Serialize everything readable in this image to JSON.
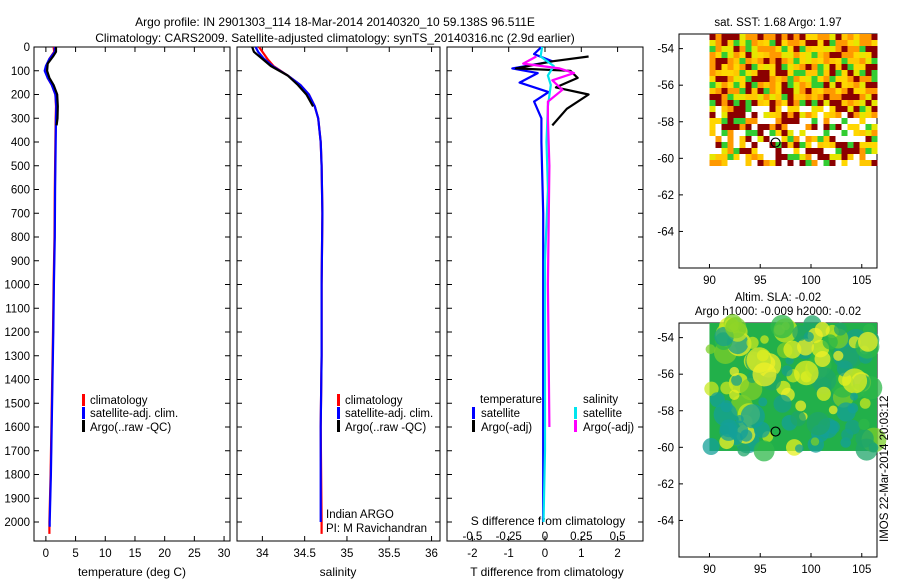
{
  "header": {
    "line1": "Argo profile: IN 2901303_114 18-Mar-2014 20140320_10 59.138S 96.511E",
    "line2": "Climatology: CARS2009. Satellite-adjusted climatology: synTS_20140316.nc (2.9d earlier)"
  },
  "side_label": "IMOS 22-Mar-2014 20:03:12",
  "colors": {
    "climatology": "#ff0000",
    "satellite": "#0000ff",
    "argo": "#000000",
    "sat_salinity": "#00e5ee",
    "argo_salinity": "#ff00ff"
  },
  "chart_data": [
    {
      "type": "line",
      "name": "temperature-profile",
      "xlabel": "temperature (deg C)",
      "xlim": [
        -2,
        31
      ],
      "ylim": [
        0,
        2080
      ],
      "xticks": [
        0,
        5,
        10,
        15,
        20,
        25,
        30
      ],
      "yticks": [
        0,
        100,
        200,
        300,
        400,
        500,
        600,
        700,
        800,
        900,
        1000,
        1100,
        1200,
        1300,
        1400,
        1500,
        1600,
        1700,
        1800,
        1900,
        2000
      ],
      "legend": [
        "climatology",
        "satellite-adj. clim.",
        "Argo(..raw -QC)"
      ],
      "series": [
        {
          "name": "climatology",
          "color": "#ff0000",
          "x": [
            1.3,
            1.4,
            0.6,
            0.1,
            -0.1,
            0.3,
            1.0,
            1.6,
            1.7,
            1.65,
            1.6,
            1.5,
            1.45,
            1.3,
            1.2,
            1.0,
            0.8,
            0.6,
            0.6
          ],
          "y": [
            0,
            20,
            50,
            80,
            100,
            130,
            160,
            200,
            250,
            300,
            400,
            600,
            800,
            1000,
            1200,
            1500,
            1800,
            2000,
            2050
          ]
        },
        {
          "name": "satellite-adj. clim.",
          "color": "#0000ff",
          "x": [
            1.5,
            1.5,
            0.6,
            0.0,
            -0.2,
            0.3,
            1.0,
            1.6,
            1.75,
            1.7,
            1.65,
            1.55,
            1.5,
            1.35,
            1.25,
            1.05,
            0.85,
            0.65,
            0.65
          ],
          "y": [
            0,
            20,
            50,
            80,
            100,
            130,
            160,
            200,
            250,
            300,
            400,
            600,
            800,
            1000,
            1200,
            1500,
            1800,
            2000,
            2020
          ]
        },
        {
          "name": "Argo(..raw -QC)",
          "color": "#000000",
          "x": [
            1.7,
            1.7,
            1.2,
            0.3,
            0.2,
            0.6,
            1.3,
            1.9,
            2.0,
            1.95,
            1.8
          ],
          "y": [
            0,
            20,
            40,
            70,
            100,
            130,
            160,
            200,
            250,
            300,
            330
          ]
        }
      ]
    },
    {
      "type": "line",
      "name": "salinity-profile",
      "xlabel": "salinity",
      "xlim": [
        33.7,
        36.1
      ],
      "ylim": [
        0,
        2080
      ],
      "xticks": [
        34,
        34.5,
        35,
        35.5,
        36
      ],
      "legend": [
        "climatology",
        "satellite-adj. clim.",
        "Argo(..raw -QC)"
      ],
      "annotations": [
        "Indian ARGO",
        "PI: M Ravichandran"
      ],
      "series": [
        {
          "name": "climatology",
          "color": "#ff0000",
          "x": [
            33.96,
            34.0,
            34.06,
            34.13,
            34.3,
            34.45,
            34.55,
            34.62,
            34.66,
            34.69,
            34.7,
            34.71,
            34.7,
            34.7,
            34.69,
            34.7,
            34.7
          ],
          "y": [
            0,
            20,
            50,
            80,
            120,
            160,
            200,
            250,
            300,
            400,
            500,
            700,
            1000,
            1300,
            1600,
            2000,
            2050
          ]
        },
        {
          "name": "satellite-adj. clim.",
          "color": "#0000ff",
          "x": [
            33.92,
            33.95,
            34.02,
            34.12,
            34.3,
            34.45,
            34.55,
            34.62,
            34.66,
            34.69,
            34.7,
            34.71,
            34.7,
            34.7,
            34.69,
            34.69
          ],
          "y": [
            0,
            20,
            50,
            80,
            120,
            160,
            200,
            250,
            300,
            400,
            500,
            700,
            1000,
            1300,
            1600,
            2000
          ]
        },
        {
          "name": "Argo(..raw -QC)",
          "color": "#000000",
          "x": [
            33.88,
            33.9,
            34.0,
            34.1,
            34.3,
            34.42,
            34.52,
            34.6
          ],
          "y": [
            0,
            20,
            50,
            80,
            120,
            160,
            200,
            250
          ]
        }
      ]
    },
    {
      "type": "line",
      "name": "difference-profile",
      "xlabel": "T difference from climatology",
      "top_label": "S difference from climatology",
      "xlim": [
        -2.7,
        2.7
      ],
      "s_xlim": [
        -0.675,
        0.675
      ],
      "ylim": [
        0,
        2080
      ],
      "xticks": [
        -2,
        -1,
        0,
        1,
        2
      ],
      "s_xticks": [
        "-0.5",
        "-0.25",
        "0",
        "0.25",
        "0.5"
      ],
      "s_xtick_values": [
        -0.5,
        -0.25,
        0,
        0.25,
        0.5
      ],
      "legend_temperature": {
        "title": "temperature",
        "items": [
          "satellite",
          "Argo(-adj)"
        ]
      },
      "legend_salinity": {
        "title": "salinity",
        "items": [
          "satellite",
          "Argo(-adj)"
        ]
      },
      "series": [
        {
          "name": "T satellite",
          "color": "#0000ff",
          "x": [
            -0.1,
            -0.3,
            0.2,
            -0.9,
            -0.2,
            -0.7,
            0.1,
            -0.3,
            -0.1,
            -0.1,
            -0.05,
            -0.05,
            -0.05,
            -0.05
          ],
          "y": [
            0,
            30,
            60,
            90,
            110,
            150,
            190,
            230,
            300,
            400,
            700,
            1200,
            1700,
            2000
          ]
        },
        {
          "name": "T Argo(-adj)",
          "color": "#000000",
          "x": [
            1.2,
            0.2,
            -0.8,
            0.7,
            0.9,
            0.3,
            1.2,
            0.6,
            0.2
          ],
          "y": [
            40,
            60,
            90,
            100,
            130,
            170,
            200,
            260,
            330
          ]
        },
        {
          "name": "S satellite",
          "color": "#00e5ee",
          "x": [
            -0.02,
            -0.03,
            0.06,
            0.02,
            0.04,
            0.02,
            0.01,
            0.02,
            0.0,
            0.0,
            0.0,
            -0.01
          ],
          "y": [
            0,
            40,
            80,
            120,
            160,
            250,
            400,
            600,
            900,
            1300,
            1700,
            2000
          ]
        },
        {
          "name": "S Argo(-adj)",
          "color": "#ff00ff",
          "x": [
            -0.06,
            -0.15,
            0.1,
            0.2,
            0.05,
            0.12,
            0.02,
            0.02,
            0.03,
            0.02,
            0.03
          ],
          "y": [
            40,
            70,
            90,
            110,
            140,
            180,
            230,
            300,
            500,
            1000,
            1600
          ]
        }
      ]
    },
    {
      "type": "heatmap",
      "name": "sst-map",
      "title": "sat. SST: 1.68 Argo: 1.97",
      "xlim": [
        87,
        106.5
      ],
      "ylim": [
        -66,
        -53.2
      ],
      "xticks": [
        90,
        95,
        100,
        105
      ],
      "yticks": [
        -54,
        -56,
        -58,
        -60,
        -62,
        -64
      ],
      "argo_position": {
        "lon": 96.511,
        "lat": -59.138
      }
    },
    {
      "type": "heatmap",
      "name": "sla-map",
      "title": "Altim. SLA: -0.02",
      "subtitle": "Argo h1000: -0.009 h2000: -0.02",
      "xlim": [
        87,
        106.5
      ],
      "ylim": [
        -66,
        -53.2
      ],
      "xticks": [
        90,
        95,
        100,
        105
      ],
      "yticks": [
        -54,
        -56,
        -58,
        -60,
        -62,
        -64
      ],
      "argo_position": {
        "lon": 96.511,
        "lat": -59.138
      }
    }
  ]
}
